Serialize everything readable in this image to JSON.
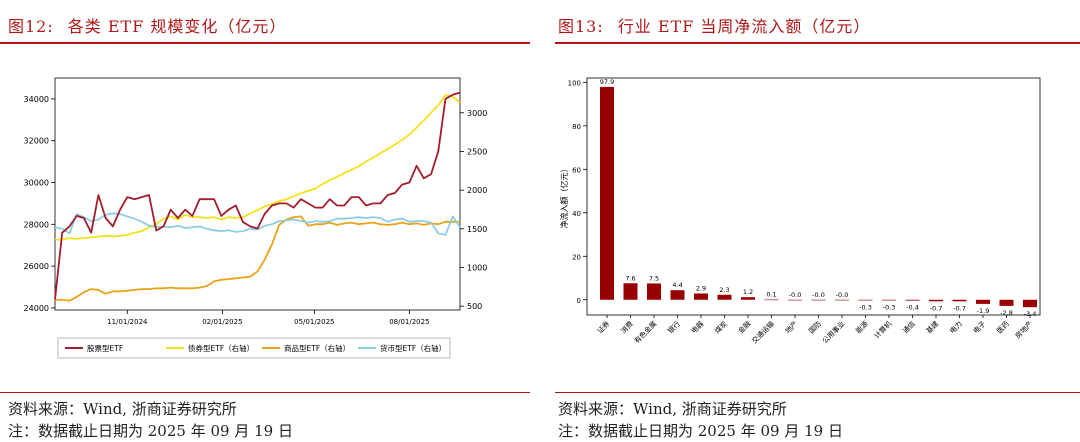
{
  "left": {
    "fig_num": "图12:",
    "title": "各类 ETF 规模变化（亿元）",
    "source": "资料来源：Wind, 浙商证券研究所",
    "note": "注：数据截止日期为 2025 年 09 月 19 日"
  },
  "right": {
    "fig_num": "图13:",
    "title": "行业 ETF 当周净流入额（亿元）",
    "source": "资料来源：Wind, 浙商证券研究所",
    "note": "注：数据截止日期为 2025 年 09 月 19 日"
  },
  "chart_data": [
    {
      "type": "line",
      "x_ticks": [
        "11/01/2024",
        "02/01/2025",
        "05/01/2025",
        "08/01/2025"
      ],
      "x_range": [
        "2024-08-23",
        "2025-09-19"
      ],
      "left_axis": {
        "ticks": [
          24000,
          26000,
          28000,
          30000,
          32000,
          34000
        ],
        "ylim": [
          23900,
          35000
        ]
      },
      "right_axis": {
        "ticks": [
          500,
          1000,
          1500,
          2000,
          2500,
          3000
        ],
        "ylim": [
          450,
          3450
        ]
      },
      "legend_position": "bottom",
      "series": [
        {
          "name": "股票型ETF",
          "axis": "left",
          "color": "#a31c2c",
          "x": [
            "2024-08-23",
            "2024-08-30",
            "2024-09-06",
            "2024-09-13",
            "2024-09-20",
            "2024-09-27",
            "2024-10-04",
            "2024-10-11",
            "2024-10-18",
            "2024-10-25",
            "2024-11-01",
            "2024-11-08",
            "2024-11-15",
            "2024-11-22",
            "2024-11-29",
            "2024-12-06",
            "2024-12-13",
            "2024-12-20",
            "2024-12-27",
            "2025-01-03",
            "2025-01-10",
            "2025-01-17",
            "2025-01-24",
            "2025-01-31",
            "2025-02-07",
            "2025-02-14",
            "2025-02-21",
            "2025-02-28",
            "2025-03-07",
            "2025-03-14",
            "2025-03-21",
            "2025-03-28",
            "2025-04-04",
            "2025-04-11",
            "2025-04-18",
            "2025-04-25",
            "2025-05-02",
            "2025-05-09",
            "2025-05-16",
            "2025-05-23",
            "2025-05-30",
            "2025-06-06",
            "2025-06-13",
            "2025-06-20",
            "2025-06-27",
            "2025-07-04",
            "2025-07-11",
            "2025-07-18",
            "2025-07-25",
            "2025-08-01",
            "2025-08-08",
            "2025-08-15",
            "2025-08-22",
            "2025-08-29",
            "2025-09-05",
            "2025-09-12",
            "2025-09-19"
          ],
          "y": [
            24400,
            27600,
            27900,
            28400,
            28300,
            27600,
            29400,
            28300,
            27900,
            28700,
            29300,
            29200,
            29300,
            29400,
            27700,
            27900,
            28700,
            28300,
            28700,
            28400,
            29200,
            29200,
            29200,
            28400,
            28700,
            28900,
            28100,
            27900,
            27800,
            28500,
            28900,
            29000,
            29000,
            28800,
            29200,
            29000,
            28800,
            28800,
            29200,
            28900,
            28900,
            29300,
            29300,
            28900,
            29000,
            29000,
            29400,
            29500,
            29900,
            30000,
            30800,
            30200,
            30400,
            31500,
            34000,
            34200,
            34300
          ]
        },
        {
          "name": "债券型ETF（右轴）",
          "axis": "right",
          "color": "#f5e11a",
          "x": [
            "2024-08-23",
            "2024-08-30",
            "2024-09-06",
            "2024-09-13",
            "2024-09-20",
            "2024-09-27",
            "2024-10-04",
            "2024-10-11",
            "2024-10-18",
            "2024-10-25",
            "2024-11-01",
            "2024-11-08",
            "2024-11-15",
            "2024-11-22",
            "2024-11-29",
            "2024-12-06",
            "2024-12-13",
            "2024-12-20",
            "2024-12-27",
            "2025-01-03",
            "2025-01-10",
            "2025-01-17",
            "2025-01-24",
            "2025-01-31",
            "2025-02-07",
            "2025-02-14",
            "2025-02-21",
            "2025-02-28",
            "2025-03-07",
            "2025-03-14",
            "2025-03-21",
            "2025-03-28",
            "2025-04-04",
            "2025-04-11",
            "2025-04-18",
            "2025-04-25",
            "2025-05-02",
            "2025-05-09",
            "2025-05-16",
            "2025-05-23",
            "2025-05-30",
            "2025-06-06",
            "2025-06-13",
            "2025-06-20",
            "2025-06-27",
            "2025-07-04",
            "2025-07-11",
            "2025-07-18",
            "2025-07-25",
            "2025-08-01",
            "2025-08-08",
            "2025-08-15",
            "2025-08-22",
            "2025-08-29",
            "2025-09-05",
            "2025-09-12",
            "2025-09-19"
          ],
          "y": [
            1360,
            1360,
            1380,
            1370,
            1380,
            1390,
            1400,
            1410,
            1400,
            1410,
            1420,
            1450,
            1470,
            1520,
            1560,
            1630,
            1660,
            1620,
            1680,
            1650,
            1650,
            1640,
            1650,
            1620,
            1650,
            1640,
            1650,
            1700,
            1740,
            1790,
            1820,
            1860,
            1880,
            1920,
            1960,
            1990,
            2020,
            2080,
            2130,
            2170,
            2220,
            2260,
            2310,
            2370,
            2420,
            2480,
            2530,
            2590,
            2650,
            2720,
            2810,
            2900,
            3000,
            3100,
            3230,
            3210,
            3130
          ]
        },
        {
          "name": "商品型ETF（右轴）",
          "axis": "right",
          "color": "#e8a417",
          "x": [
            "2024-08-23",
            "2024-08-30",
            "2024-09-06",
            "2024-09-13",
            "2024-09-20",
            "2024-09-27",
            "2024-10-04",
            "2024-10-11",
            "2024-10-18",
            "2024-10-25",
            "2024-11-01",
            "2024-11-08",
            "2024-11-15",
            "2024-11-22",
            "2024-11-29",
            "2024-12-06",
            "2024-12-13",
            "2024-12-20",
            "2024-12-27",
            "2025-01-03",
            "2025-01-10",
            "2025-01-17",
            "2025-01-24",
            "2025-01-31",
            "2025-02-07",
            "2025-02-14",
            "2025-02-21",
            "2025-02-28",
            "2025-03-07",
            "2025-03-14",
            "2025-03-21",
            "2025-03-28",
            "2025-04-04",
            "2025-04-11",
            "2025-04-18",
            "2025-04-25",
            "2025-05-02",
            "2025-05-09",
            "2025-05-16",
            "2025-05-23",
            "2025-05-30",
            "2025-06-06",
            "2025-06-13",
            "2025-06-20",
            "2025-06-27",
            "2025-07-04",
            "2025-07-11",
            "2025-07-18",
            "2025-07-25",
            "2025-08-01",
            "2025-08-08",
            "2025-08-15",
            "2025-08-22",
            "2025-08-29",
            "2025-09-05",
            "2025-09-12",
            "2025-09-19"
          ],
          "y": [
            580,
            580,
            570,
            620,
            680,
            720,
            710,
            660,
            690,
            690,
            700,
            710,
            720,
            720,
            730,
            730,
            740,
            730,
            730,
            730,
            740,
            760,
            820,
            840,
            850,
            860,
            870,
            880,
            950,
            1100,
            1300,
            1550,
            1620,
            1650,
            1660,
            1540,
            1560,
            1560,
            1580,
            1550,
            1570,
            1580,
            1560,
            1570,
            1580,
            1560,
            1550,
            1560,
            1580,
            1560,
            1570,
            1550,
            1570,
            1560,
            1590,
            1590,
            1590
          ]
        },
        {
          "name": "货币型ETF（右轴）",
          "axis": "right",
          "color": "#8ccde8",
          "x": [
            "2024-08-23",
            "2024-08-30",
            "2024-09-06",
            "2024-09-13",
            "2024-09-20",
            "2024-09-27",
            "2024-10-04",
            "2024-10-11",
            "2024-10-18",
            "2024-10-25",
            "2024-11-01",
            "2024-11-08",
            "2024-11-15",
            "2024-11-22",
            "2024-11-29",
            "2024-12-06",
            "2024-12-13",
            "2024-12-20",
            "2024-12-27",
            "2025-01-03",
            "2025-01-10",
            "2025-01-17",
            "2025-01-24",
            "2025-01-31",
            "2025-02-07",
            "2025-02-14",
            "2025-02-21",
            "2025-02-28",
            "2025-03-07",
            "2025-03-14",
            "2025-03-21",
            "2025-03-28",
            "2025-04-04",
            "2025-04-11",
            "2025-04-18",
            "2025-04-25",
            "2025-05-02",
            "2025-05-09",
            "2025-05-16",
            "2025-05-23",
            "2025-05-30",
            "2025-06-06",
            "2025-06-13",
            "2025-06-20",
            "2025-06-27",
            "2025-07-04",
            "2025-07-11",
            "2025-07-18",
            "2025-07-25",
            "2025-08-01",
            "2025-08-08",
            "2025-08-15",
            "2025-08-22",
            "2025-08-29",
            "2025-09-05",
            "2025-09-12",
            "2025-09-19"
          ],
          "y": [
            1520,
            1500,
            1440,
            1690,
            1650,
            1600,
            1620,
            1680,
            1700,
            1690,
            1660,
            1630,
            1590,
            1540,
            1520,
            1530,
            1520,
            1540,
            1510,
            1520,
            1530,
            1500,
            1480,
            1470,
            1480,
            1460,
            1470,
            1500,
            1490,
            1540,
            1560,
            1600,
            1610,
            1620,
            1600,
            1580,
            1600,
            1590,
            1600,
            1630,
            1630,
            1640,
            1650,
            1640,
            1650,
            1640,
            1590,
            1620,
            1630,
            1590,
            1600,
            1600,
            1580,
            1440,
            1420,
            1660,
            1520
          ]
        }
      ]
    },
    {
      "type": "bar",
      "ylabel": "净流入额（亿元）",
      "ylim": [
        -7,
        102
      ],
      "y_ticks": [
        0,
        20,
        40,
        60,
        80,
        100
      ],
      "color": "#990000",
      "categories": [
        "证券",
        "消费",
        "有色金属",
        "银行",
        "电器",
        "煤炭",
        "金融",
        "交通运输",
        "地产",
        "国防",
        "公用事业",
        "能源",
        "计算机",
        "通信",
        "基建",
        "电力",
        "电子",
        "医药",
        "房地产"
      ],
      "values": [
        97.9,
        7.6,
        7.5,
        4.4,
        2.9,
        2.3,
        1.2,
        0.1,
        -0.0,
        -0.0,
        -0.0,
        -0.3,
        -0.3,
        -0.4,
        -0.7,
        -0.7,
        -1.9,
        -2.8,
        -3.4
      ],
      "value_labels": [
        "97.9",
        "7.6",
        "7.5",
        "4.4",
        "2.9",
        "2.3",
        "1.2",
        "0.1",
        "-0.0",
        "-0.0",
        "-0.0",
        "-0.3",
        "-0.3",
        "-0.4",
        "-0.7",
        "-0.7",
        "-1.9",
        "-2.8",
        "-3.4"
      ]
    }
  ]
}
